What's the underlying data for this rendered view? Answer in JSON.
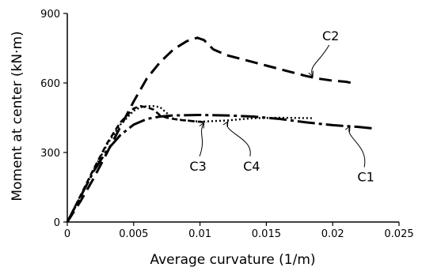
{
  "chart_data": {
    "type": "line",
    "title": "",
    "xlabel": "Average curvature (1/m)",
    "ylabel": "Moment at center (kN·m)",
    "xlim": [
      0,
      0.025
    ],
    "ylim": [
      0,
      900
    ],
    "x_ticks": [
      0,
      0.005,
      0.01,
      0.015,
      0.02,
      0.025
    ],
    "x_tick_labels": [
      "0",
      "0.005",
      "0.01",
      "0.015",
      "0.02",
      "0.025"
    ],
    "y_ticks": [
      0,
      300,
      600,
      900
    ],
    "y_tick_labels": [
      "0",
      "300",
      "600",
      "900"
    ],
    "grid": false,
    "legend": "none",
    "series": [
      {
        "name": "C1",
        "style": "dash-dot",
        "x": [
          0,
          0.001,
          0.002,
          0.003,
          0.004,
          0.005,
          0.006,
          0.007,
          0.008,
          0.01,
          0.012,
          0.014,
          0.016,
          0.018,
          0.02,
          0.022,
          0.0232
        ],
        "y": [
          0,
          110,
          220,
          310,
          375,
          420,
          445,
          455,
          460,
          462,
          460,
          455,
          445,
          430,
          418,
          410,
          403
        ]
      },
      {
        "name": "C2",
        "style": "long-dash",
        "x": [
          0,
          0.001,
          0.002,
          0.003,
          0.004,
          0.005,
          0.006,
          0.007,
          0.008,
          0.009,
          0.0098,
          0.0103,
          0.011,
          0.012,
          0.013,
          0.014,
          0.015,
          0.016,
          0.017,
          0.018,
          0.019,
          0.02,
          0.021,
          0.0216
        ],
        "y": [
          0,
          90,
          190,
          300,
          410,
          520,
          620,
          690,
          745,
          780,
          795,
          785,
          745,
          720,
          705,
          690,
          675,
          660,
          645,
          630,
          618,
          610,
          605,
          598
        ]
      },
      {
        "name": "C3",
        "style": "short-dash",
        "x": [
          0,
          0.001,
          0.002,
          0.003,
          0.004,
          0.005,
          0.0055,
          0.006,
          0.0065,
          0.007,
          0.0075,
          0.008,
          0.0085,
          0.009,
          0.0095,
          0.0105
        ],
        "y": [
          0,
          115,
          230,
          340,
          430,
          490,
          500,
          495,
          485,
          460,
          450,
          445,
          440,
          438,
          435,
          430
        ]
      },
      {
        "name": "C4",
        "style": "dotted",
        "x": [
          0,
          0.001,
          0.002,
          0.003,
          0.004,
          0.005,
          0.0055,
          0.006,
          0.0065,
          0.007,
          0.0075,
          0.008,
          0.009,
          0.01,
          0.012,
          0.014,
          0.016,
          0.0185
        ],
        "y": [
          0,
          110,
          225,
          335,
          420,
          480,
          495,
          500,
          500,
          495,
          470,
          445,
          438,
          433,
          438,
          448,
          450,
          448
        ]
      }
    ],
    "annotations": [
      {
        "label": "C2",
        "text_x": 0.01985,
        "text_y": 784,
        "arrow_to": [
          0.0185,
          628
        ]
      },
      {
        "label": "C3",
        "text_x": 0.00985,
        "text_y": 222,
        "arrow_to": [
          0.0103,
          428
        ]
      },
      {
        "label": "C4",
        "text_x": 0.01389,
        "text_y": 222,
        "arrow_to": [
          0.0121,
          433
        ]
      },
      {
        "label": "C1",
        "text_x": 0.0225,
        "text_y": 175,
        "arrow_to": [
          0.0213,
          412
        ]
      }
    ]
  }
}
